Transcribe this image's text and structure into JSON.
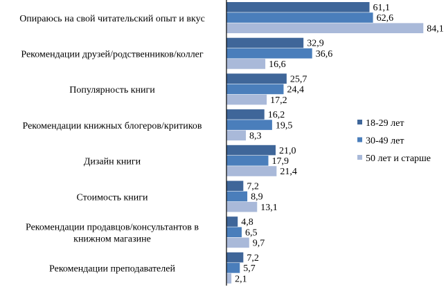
{
  "chart_data": {
    "type": "bar",
    "orientation": "horizontal",
    "title": "",
    "xlabel": "",
    "ylabel": "",
    "xlim": [
      0,
      85
    ],
    "grid": false,
    "legend_position": "right",
    "categories": [
      "Опираюсь на свой читательский опыт и вкус",
      "Рекомендации друзей/родственников/коллег",
      "Популярность книги",
      "Рекомендации книжных блогеров/критиков",
      "Дизайн книги",
      "Стоимость книги",
      "Рекомендации продавцов/консультантов в книжном магазине",
      "Рекомендации преподавателей"
    ],
    "category_lines": [
      [
        "Опираюсь на свой читательский опыт и вкус"
      ],
      [
        "Рекомендации друзей/родственников/коллег"
      ],
      [
        "Популярность книги"
      ],
      [
        "Рекомендации книжных блогеров/критиков"
      ],
      [
        "Дизайн книги"
      ],
      [
        "Стоимость книги"
      ],
      [
        "Рекомендации продавцов/консультантов в",
        "книжном магазине"
      ],
      [
        "Рекомендации преподавателей"
      ]
    ],
    "series": [
      {
        "name": "18-29 лет",
        "color": "#3F6699",
        "values": [
          61.1,
          32.9,
          25.7,
          16.2,
          21.0,
          7.2,
          4.8,
          7.2
        ],
        "labels": [
          "61,1",
          "32,9",
          "25,7",
          "16,2",
          "21,0",
          "7,2",
          "4,8",
          "7,2"
        ]
      },
      {
        "name": "30-49 лет",
        "color": "#4A7EBB",
        "values": [
          62.6,
          36.6,
          24.4,
          19.5,
          17.9,
          8.9,
          6.5,
          5.7
        ],
        "labels": [
          "62,6",
          "36,6",
          "24,4",
          "19,5",
          "17,9",
          "8,9",
          "6,5",
          "5,7"
        ]
      },
      {
        "name": "50 лет и старше",
        "color": "#A9B9D9",
        "values": [
          84.1,
          16.6,
          17.2,
          8.3,
          21.4,
          13.1,
          9.7,
          2.1
        ],
        "labels": [
          "84,1",
          "16,6",
          "17,2",
          "8,3",
          "21,4",
          "13,1",
          "9,7",
          "2,1"
        ]
      }
    ]
  }
}
